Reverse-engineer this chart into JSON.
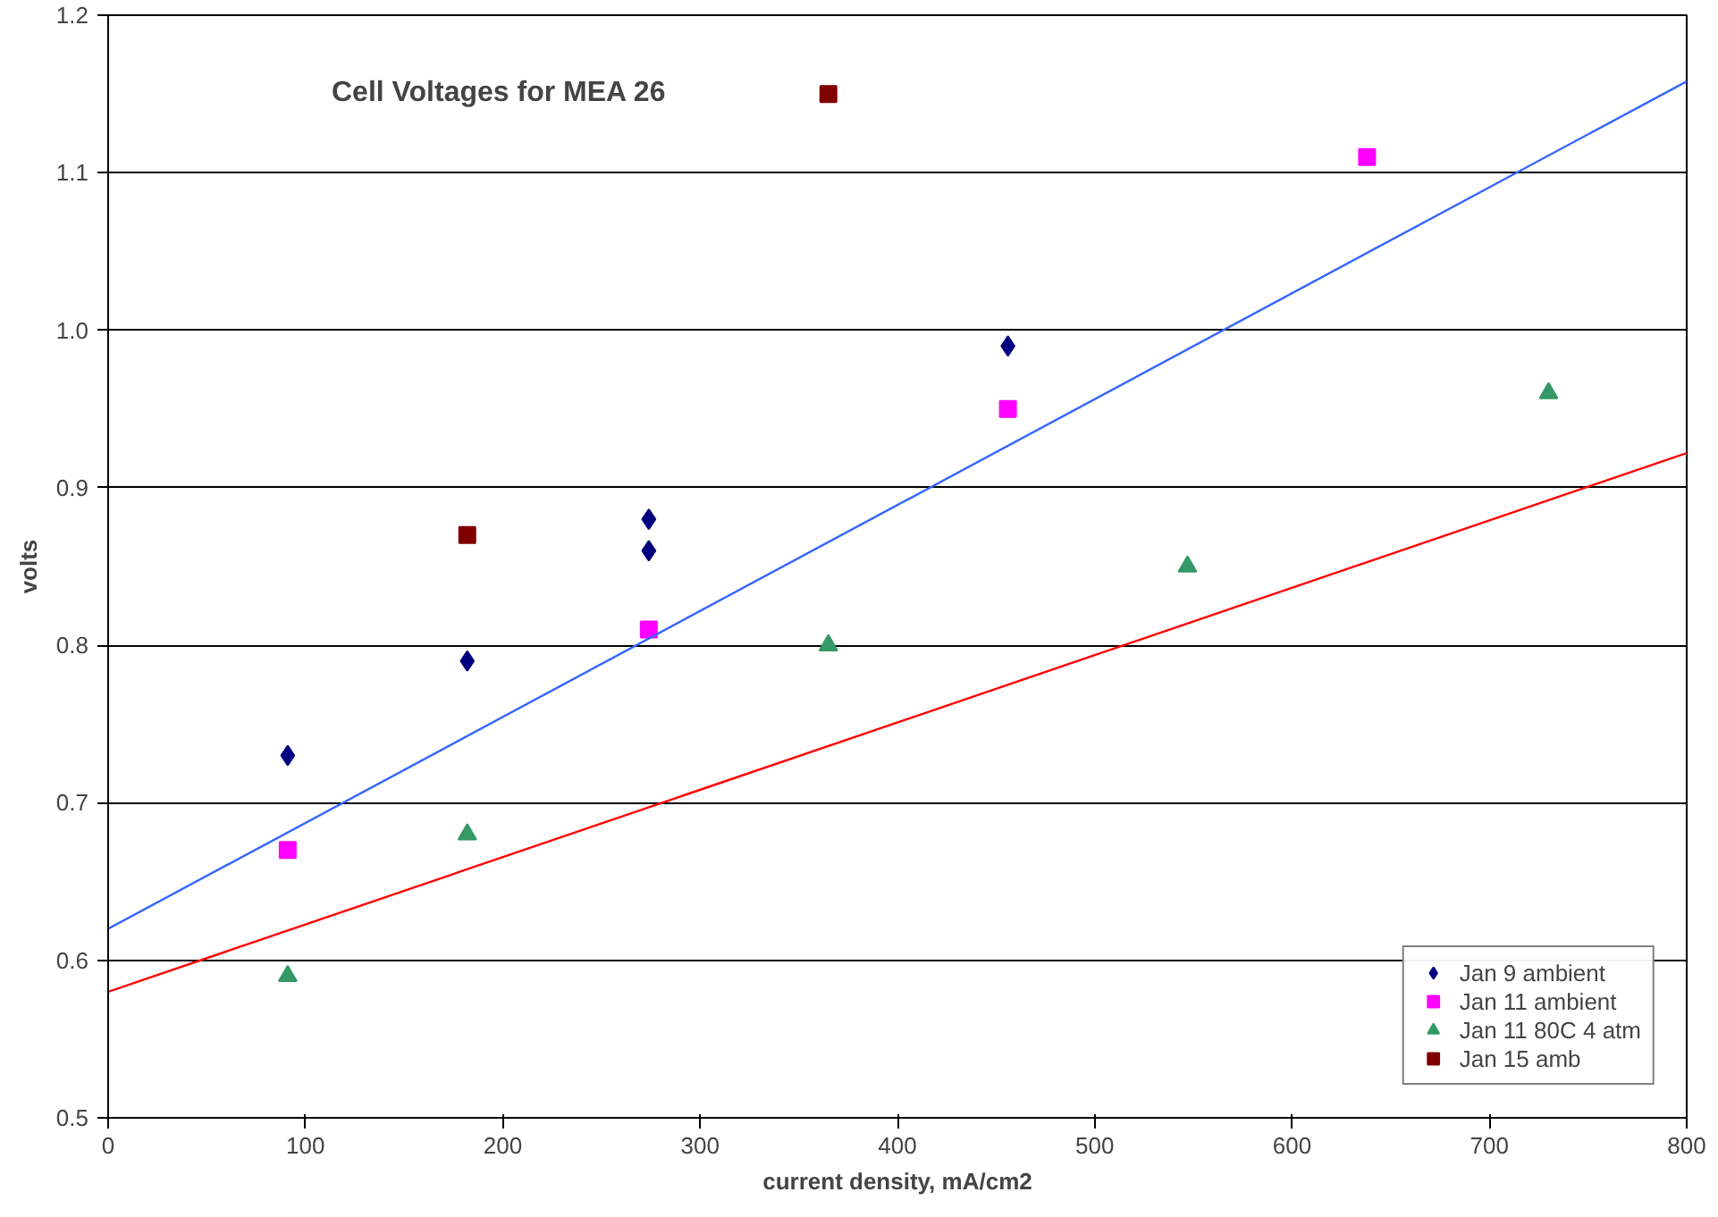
{
  "chart_data": {
    "type": "scatter",
    "title": "Cell Voltages for MEA 26",
    "xlabel": "current density, mA/cm2",
    "ylabel": "volts",
    "xlim": [
      0,
      800
    ],
    "xticks": [
      0,
      100,
      200,
      300,
      400,
      500,
      600,
      700,
      800
    ],
    "ylim": [
      0.5,
      1.2
    ],
    "yticks": [
      {
        "value": 0.5,
        "label": "0.5"
      },
      {
        "value": 0.6,
        "label": "0.6"
      },
      {
        "value": 0.7,
        "label": "0.7"
      },
      {
        "value": 0.8,
        "label": "0.8"
      },
      {
        "value": 0.9,
        "label": "0.9"
      },
      {
        "value": 1.0,
        "label": "1.0"
      },
      {
        "value": 1.1,
        "label": "1.1"
      },
      {
        "value": 1.2,
        "label": "1.2"
      }
    ],
    "grid": "y",
    "legend": "bottom right",
    "series": [
      {
        "name": "Jan 9 ambient",
        "color": "#000080",
        "marker": "diamond",
        "x": [
          91,
          182,
          274,
          274,
          456
        ],
        "values": [
          0.73,
          0.79,
          0.88,
          0.86,
          0.99
        ]
      },
      {
        "name": "Jan 11 ambient",
        "color": "#ff00ff",
        "marker": "square",
        "x": [
          91,
          274,
          456,
          638
        ],
        "values": [
          0.67,
          0.81,
          0.95,
          1.11
        ]
      },
      {
        "name": "Jan 11 80C 4 atm",
        "color": "#339966",
        "marker": "triangle",
        "x": [
          91,
          182,
          365,
          547,
          730
        ],
        "values": [
          0.59,
          0.68,
          0.8,
          0.85,
          0.96
        ]
      },
      {
        "name": "Jan 15 amb",
        "color": "#800000",
        "marker": "square",
        "x": [
          182,
          365
        ],
        "values": [
          0.87,
          1.15
        ]
      },
      {
        "type": "line",
        "color": "#3366ff",
        "x": [
          0,
          800
        ],
        "values": [
          0.62,
          1.158
        ]
      },
      {
        "type": "line",
        "color": "#ff0000",
        "x": [
          0,
          800
        ],
        "values": [
          0.58,
          0.922
        ]
      }
    ]
  }
}
